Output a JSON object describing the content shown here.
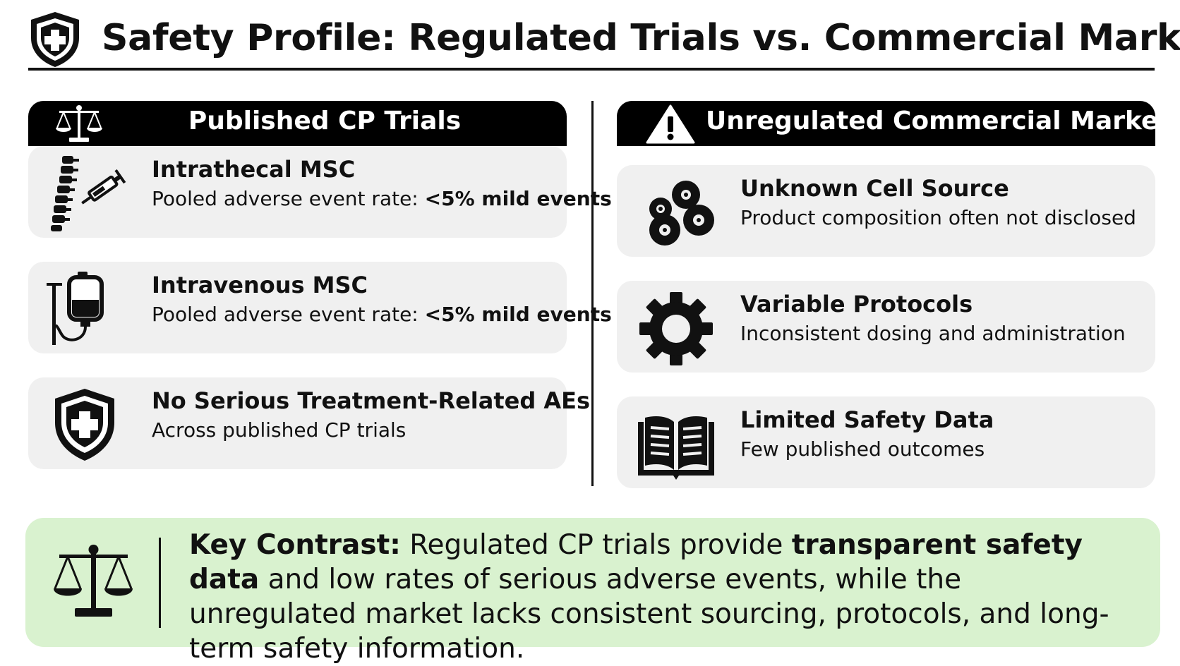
{
  "header": {
    "title": "Safety Profile: Regulated Trials vs. Commercial Market",
    "icon": "shield-plus-icon"
  },
  "left": {
    "title": "Published CP Trials",
    "icon": "scales-icon",
    "cards": [
      {
        "icon": "spine-syringe-icon",
        "title": "Intrathecal MSC",
        "desc_prefix": "Pooled adverse event rate: ",
        "desc_emphasis": "<5% mild events"
      },
      {
        "icon": "iv-bag-icon",
        "title": "Intravenous MSC",
        "desc_prefix": "Pooled adverse event rate: ",
        "desc_emphasis": "<5% mild events"
      },
      {
        "icon": "shield-plus-icon",
        "title": "No Serious Treatment-Related AEs",
        "desc": "Across published CP trials"
      }
    ]
  },
  "right": {
    "title": "Unregulated Commercial Market",
    "icon": "warning-icon",
    "cards": [
      {
        "icon": "cells-icon",
        "title": "Unknown Cell Source",
        "desc": "Product composition often not disclosed"
      },
      {
        "icon": "gear-icon",
        "title": "Variable Protocols",
        "desc": "Inconsistent dosing and administration"
      },
      {
        "icon": "open-book-icon",
        "title": "Limited Safety Data",
        "desc": "Few published outcomes"
      }
    ]
  },
  "summary": {
    "icon": "scales-icon",
    "label": "Key Contrast:",
    "text1": " Regulated CP trials provide ",
    "bold": "transparent safety data",
    "text2": " and low rates of serious adverse events, while the unregulated market lacks consistent sourcing, protocols, and long-term safety information."
  },
  "colors": {
    "ink": "#111111",
    "card_bg": "#f0f0f0",
    "summary_bg": "#d9f2cf"
  }
}
